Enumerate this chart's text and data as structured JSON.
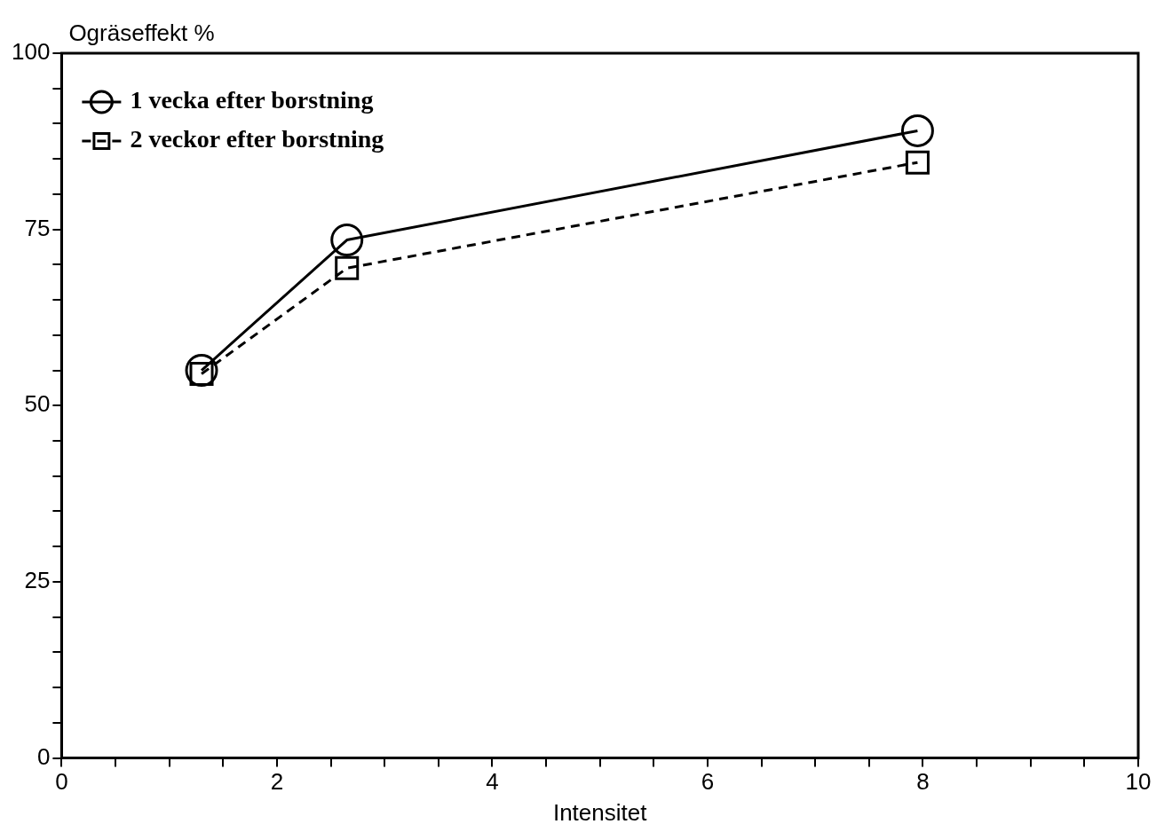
{
  "chart_data": {
    "type": "line",
    "xlabel": "Intensitet",
    "ylabel": "Ogräseffekt %",
    "xlim": [
      0,
      10
    ],
    "ylim": [
      0,
      100
    ],
    "xticks": [
      0,
      {
        "value": 0.5,
        "label": null
      },
      {
        "value": 1,
        "label": null
      },
      {
        "value": 1.5,
        "label": null
      },
      2,
      {
        "value": 2.5,
        "label": null
      },
      {
        "value": 3,
        "label": null
      },
      {
        "value": 3.5,
        "label": null
      },
      4,
      {
        "value": 4.5,
        "label": null
      },
      {
        "value": 5,
        "label": null
      },
      {
        "value": 5.5,
        "label": null
      },
      6,
      {
        "value": 6.5,
        "label": null
      },
      {
        "value": 7,
        "label": null
      },
      {
        "value": 7.5,
        "label": null
      },
      8,
      {
        "value": 8.5,
        "label": null
      },
      {
        "value": 9,
        "label": null
      },
      {
        "value": 9.5,
        "label": null
      },
      10
    ],
    "yticks": [
      0,
      {
        "value": 5,
        "label": null
      },
      {
        "value": 10,
        "label": null
      },
      {
        "value": 15,
        "label": null
      },
      {
        "value": 20,
        "label": null
      },
      25,
      {
        "value": 30,
        "label": null
      },
      {
        "value": 35,
        "label": null
      },
      {
        "value": 40,
        "label": null
      },
      {
        "value": 45,
        "label": null
      },
      50,
      {
        "value": 55,
        "label": null
      },
      {
        "value": 60,
        "label": null
      },
      {
        "value": 65,
        "label": null
      },
      {
        "value": 70,
        "label": null
      },
      75,
      {
        "value": 80,
        "label": null
      },
      {
        "value": 85,
        "label": null
      },
      {
        "value": 90,
        "label": null
      },
      {
        "value": 95,
        "label": null
      },
      100
    ],
    "grid": false,
    "legend": "top left",
    "series": [
      {
        "name": "1 vecka efter borstning",
        "color": "#000000",
        "marker": "circle",
        "line_style": "solid",
        "x": [
          1.3,
          2.65,
          7.95
        ],
        "values": [
          55,
          73.5,
          89
        ]
      },
      {
        "name": "2 veckor efter borstning",
        "color": "#000000",
        "marker": "square",
        "line_style": "dashed",
        "x": [
          1.3,
          2.65,
          7.95
        ],
        "values": [
          54.5,
          69.5,
          84.5
        ]
      }
    ]
  }
}
